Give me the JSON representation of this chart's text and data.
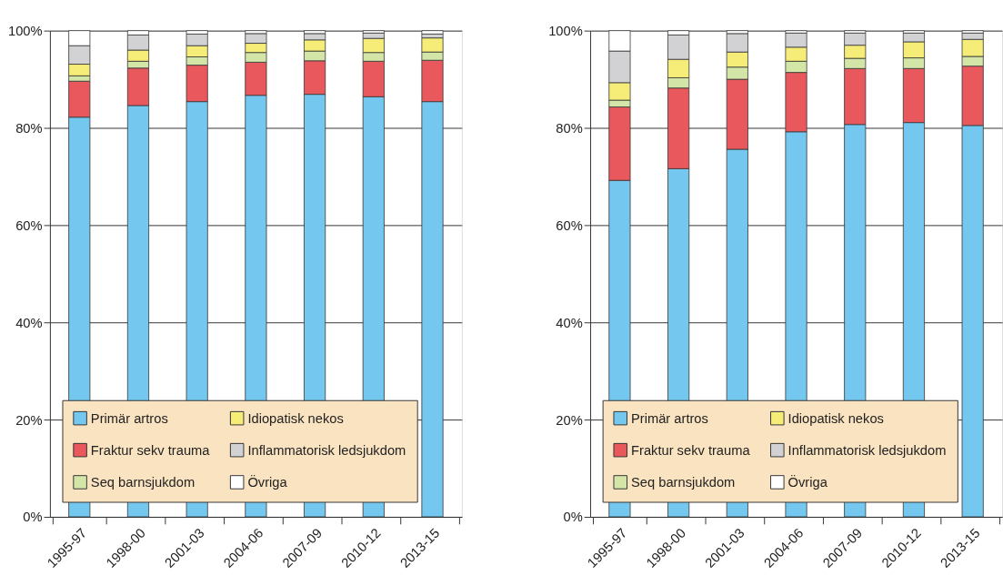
{
  "chart_data": [
    {
      "type": "bar",
      "stacked": true,
      "categories": [
        "1995-97",
        "1998-00",
        "2001-03",
        "2004-06",
        "2007-09",
        "2010-12",
        "2013-15"
      ],
      "series": [
        {
          "name": "Primär artros",
          "color": "#74c7ef",
          "values": [
            82.2,
            84.6,
            85.4,
            86.7,
            86.9,
            86.4,
            85.4
          ]
        },
        {
          "name": "Fraktur sekv trauma",
          "color": "#e8585c",
          "values": [
            7.4,
            7.7,
            7.5,
            6.8,
            6.9,
            7.3,
            8.5
          ]
        },
        {
          "name": "Seq barnsjukdom",
          "color": "#d4e5a8",
          "values": [
            1.1,
            1.4,
            1.7,
            2.0,
            2.0,
            1.8,
            1.7
          ]
        },
        {
          "name": "Idiopatisk nekos",
          "color": "#f6ec78",
          "values": [
            2.4,
            2.3,
            2.3,
            1.9,
            2.3,
            2.9,
            2.9
          ]
        },
        {
          "name": "Inflammatorisk ledsjukdom",
          "color": "#d2d2d4",
          "values": [
            3.8,
            3.1,
            2.4,
            2.0,
            1.3,
            1.1,
            0.8
          ]
        },
        {
          "name": "Övriga",
          "color": "#ffffff",
          "values": [
            3.1,
            0.9,
            0.7,
            0.6,
            0.6,
            0.5,
            0.7
          ]
        }
      ],
      "ylim": [
        0,
        100
      ],
      "yticks": [
        {
          "value": 0,
          "label": "0%"
        },
        {
          "value": 20,
          "label": "20%"
        },
        {
          "value": 40,
          "label": "40%"
        },
        {
          "value": 60,
          "label": "60%"
        },
        {
          "value": 80,
          "label": "80%"
        },
        {
          "value": 100,
          "label": "100%"
        }
      ],
      "grid": "y",
      "legend": "bottom"
    },
    {
      "type": "bar",
      "stacked": true,
      "categories": [
        "1995-97",
        "1998-00",
        "2001-03",
        "2004-06",
        "2007-09",
        "2010-12",
        "2013-15"
      ],
      "series": [
        {
          "name": "Primär artros",
          "color": "#74c7ef",
          "values": [
            69.2,
            71.6,
            75.6,
            79.2,
            80.7,
            81.1,
            80.5
          ]
        },
        {
          "name": "Fraktur sekv trauma",
          "color": "#e8585c",
          "values": [
            15.1,
            16.6,
            14.4,
            12.2,
            11.5,
            11.1,
            12.2
          ]
        },
        {
          "name": "Seq barnsjukdom",
          "color": "#d4e5a8",
          "values": [
            1.4,
            2.1,
            2.5,
            2.3,
            2.1,
            2.2,
            2.0
          ]
        },
        {
          "name": "Idiopatisk nekos",
          "color": "#f6ec78",
          "values": [
            3.6,
            3.8,
            3.1,
            2.9,
            2.7,
            3.3,
            3.5
          ]
        },
        {
          "name": "Inflammatorisk ledsjukdom",
          "color": "#d2d2d4",
          "values": [
            6.5,
            5.0,
            3.8,
            2.9,
            2.5,
            1.8,
            1.3
          ]
        },
        {
          "name": "Övriga",
          "color": "#ffffff",
          "values": [
            4.2,
            0.9,
            0.6,
            0.5,
            0.5,
            0.5,
            0.5
          ]
        }
      ],
      "ylim": [
        0,
        100
      ],
      "yticks": [
        {
          "value": 0,
          "label": "0%"
        },
        {
          "value": 20,
          "label": "20%"
        },
        {
          "value": 40,
          "label": "40%"
        },
        {
          "value": 60,
          "label": "60%"
        },
        {
          "value": 80,
          "label": "80%"
        },
        {
          "value": 100,
          "label": "100%"
        }
      ],
      "grid": "y",
      "legend": "bottom"
    }
  ]
}
